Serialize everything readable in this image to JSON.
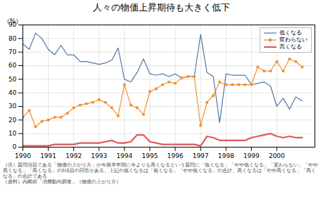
{
  "chart_data": {
    "type": "line",
    "title": "人々の物価上昇期待も大きく低下",
    "ylabel": "（%）",
    "annotations": [
      "（注）質問項目である「物価の上がり方」が今後半年間に今よりも高くなるという質問に「低くなる」「やや低くなる」「変わらない」「やや",
      "高くなる」「高くなる」の5項目の回答がある。上記の低くなるは「低くなる」「やや低くなる」の合計、高くなるは「やや高くなる」「高く",
      "なる」の合計である",
      "（資料）内閣府「消費動向調査」（物価の上がり方）"
    ],
    "x": [
      1990.0,
      1990.25,
      1990.5,
      1990.75,
      1991.0,
      1991.25,
      1991.5,
      1991.75,
      1992.0,
      1992.25,
      1992.5,
      1992.75,
      1993.0,
      1993.25,
      1993.5,
      1993.75,
      1994.0,
      1994.25,
      1994.5,
      1994.75,
      1995.0,
      1995.25,
      1995.5,
      1995.75,
      1996.0,
      1996.25,
      1996.5,
      1996.75,
      1997.0,
      1997.25,
      1997.5,
      1997.75,
      1998.0,
      1998.25,
      1998.5,
      1998.75,
      1999.0,
      1999.25,
      1999.5,
      1999.75,
      2000.0,
      2000.25,
      2000.5,
      2000.75,
      2001.0
    ],
    "series": [
      {
        "name": "低くなる",
        "values": [
          76,
          72,
          84,
          80,
          72,
          68,
          75,
          68,
          68,
          63,
          63,
          62,
          61,
          62,
          64,
          73,
          50,
          48,
          55,
          65,
          54,
          53,
          54,
          52,
          54,
          51,
          52,
          52,
          83,
          55,
          52,
          18,
          54,
          53,
          53,
          53,
          46,
          47,
          48,
          45,
          30,
          36,
          28,
          37,
          34
        ]
      },
      {
        "name": "変わらない",
        "marker": "square",
        "values": [
          22,
          27,
          15,
          19,
          20,
          22,
          22,
          25,
          29,
          31,
          32,
          33,
          35,
          33,
          29,
          23,
          46,
          31,
          29,
          24,
          41,
          43,
          46,
          48,
          47,
          51,
          52,
          52,
          16,
          33,
          38,
          48,
          46,
          46,
          46,
          46,
          46,
          59,
          56,
          56,
          63,
          56,
          65,
          63,
          59
        ]
      },
      {
        "name": "高くなる",
        "values": [
          1,
          1,
          1,
          1,
          1,
          2,
          2,
          2,
          2,
          3,
          3,
          3,
          3,
          4,
          5,
          3,
          3,
          4,
          9,
          9,
          4,
          3,
          2,
          2,
          2,
          2,
          2,
          2,
          1,
          8,
          7,
          5,
          5,
          5,
          5,
          5,
          7,
          8,
          9,
          10,
          8,
          7,
          8,
          7,
          7
        ]
      }
    ],
    "xlim": [
      1990,
      2001.5
    ],
    "xticks": [
      1990,
      1991,
      1992,
      1993,
      1994,
      1995,
      1996,
      1997,
      1998,
      1999,
      2000
    ],
    "ylim": [
      0,
      90
    ],
    "yticks": [
      0,
      10,
      20,
      30,
      40,
      50,
      60,
      70,
      80,
      90
    ],
    "grid": true,
    "legend": "upper right"
  }
}
